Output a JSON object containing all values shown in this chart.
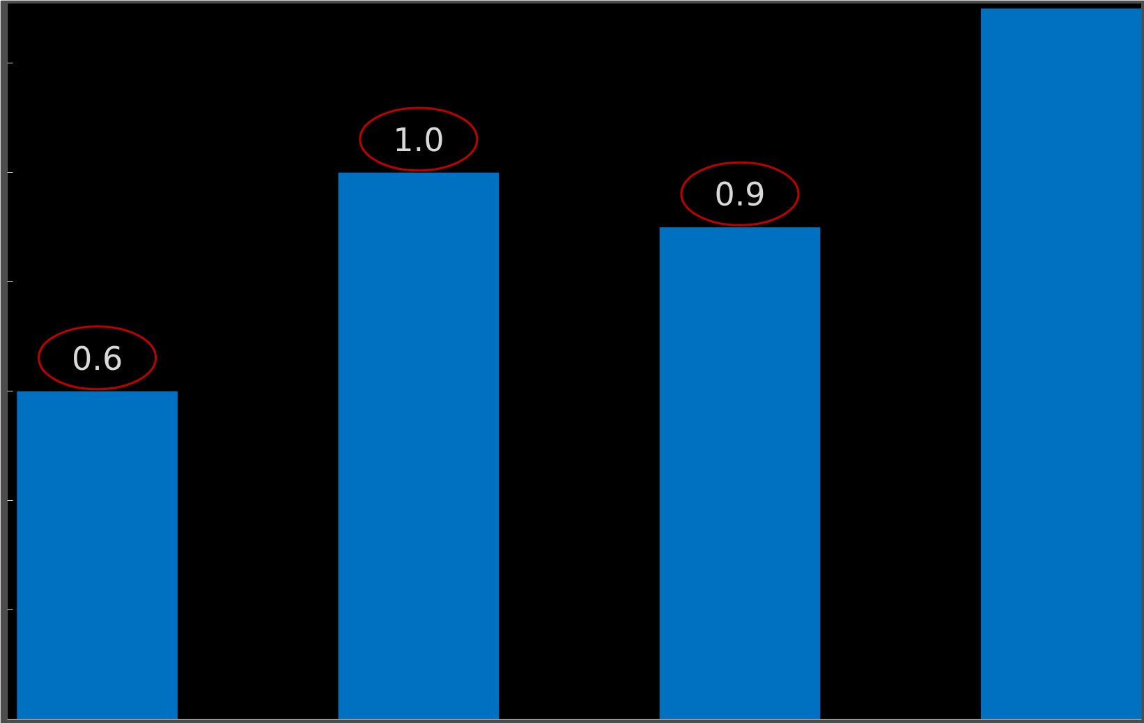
{
  "chart_data": {
    "type": "bar",
    "categories": [
      null,
      null,
      null,
      null
    ],
    "values": [
      0.6,
      1.0,
      0.9,
      1.3
    ],
    "color": "#0070c0",
    "value_labels": [
      "0.6",
      "1.0",
      "0.9",
      null
    ],
    "ylim": [
      0,
      1.31
    ],
    "yticks": [
      {
        "value": 0.2,
        "label": null
      },
      {
        "value": 0.4,
        "label": null
      },
      {
        "value": 0.6,
        "label": null
      },
      {
        "value": 0.8,
        "label": null
      },
      {
        "value": 1.0,
        "label": null
      },
      {
        "value": 1.2,
        "label": null
      }
    ],
    "grid": false
  }
}
